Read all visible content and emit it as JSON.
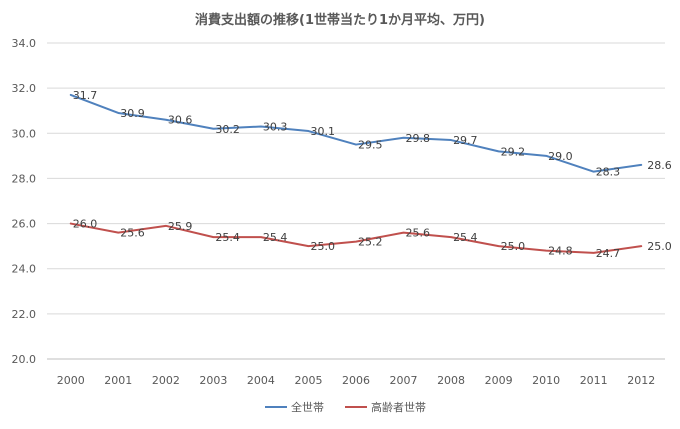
{
  "chart_data": {
    "type": "line",
    "title": "消費支出額の推移(1世帯当たり1か月平均、万円)",
    "xlabel": "",
    "ylabel": "",
    "categories": [
      "2000",
      "2001",
      "2002",
      "2003",
      "2004",
      "2005",
      "2006",
      "2007",
      "2008",
      "2009",
      "2010",
      "2011",
      "2012"
    ],
    "ylim": [
      20,
      34
    ],
    "yticks": [
      "20.0",
      "22.0",
      "24.0",
      "26.0",
      "28.0",
      "30.0",
      "32.0",
      "34.0"
    ],
    "grid": true,
    "legend_position": "bottom",
    "series": [
      {
        "name": "全世帯",
        "color": "#4f81bd",
        "values": [
          31.7,
          30.9,
          30.6,
          30.2,
          30.3,
          30.1,
          29.5,
          29.8,
          29.7,
          29.2,
          29.0,
          28.3,
          28.6
        ],
        "labels": [
          "31.7",
          "30.9",
          "30.6",
          "30.2",
          "30.3",
          "30.1",
          "29.5",
          "29.8",
          "29.7",
          "29.2",
          "29.0",
          "28.3",
          "28.6"
        ]
      },
      {
        "name": "高齢者世帯",
        "color": "#c0504d",
        "values": [
          26.0,
          25.6,
          25.9,
          25.4,
          25.4,
          25.0,
          25.2,
          25.6,
          25.4,
          25.0,
          24.8,
          24.7,
          25.0
        ],
        "labels": [
          "26.0",
          "25.6",
          "25.9",
          "25.4",
          "25.4",
          "25.0",
          "25.2",
          "25.6",
          "25.4",
          "25.0",
          "24.8",
          "24.7",
          "25.0"
        ]
      }
    ]
  }
}
